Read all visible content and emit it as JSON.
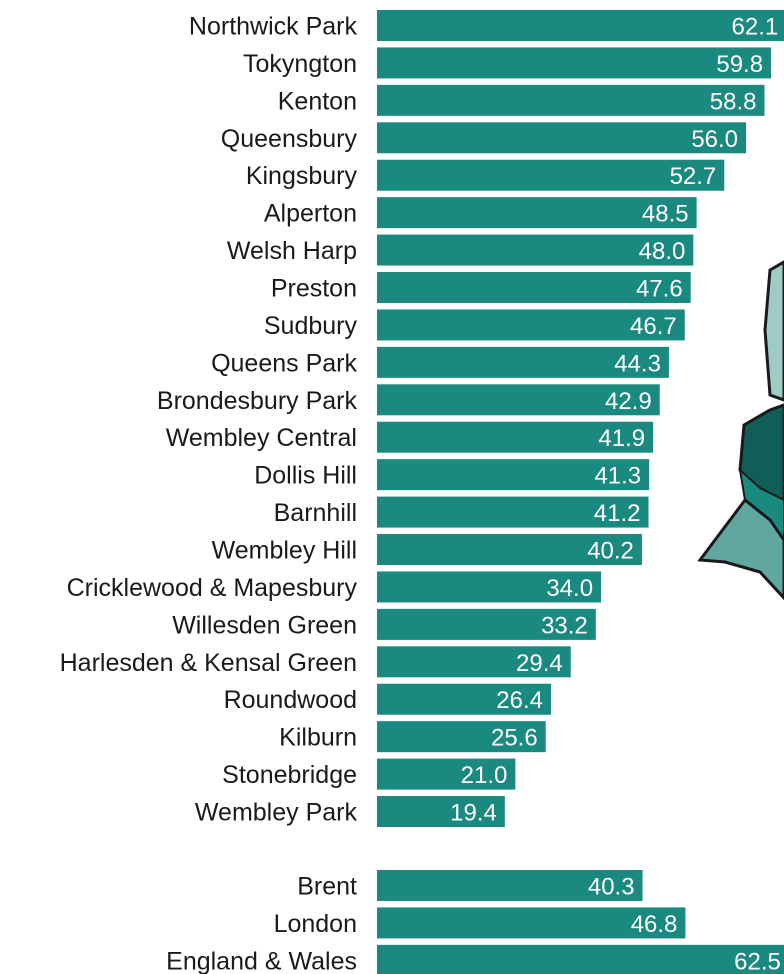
{
  "chart_data": {
    "type": "bar",
    "orientation": "horizontal",
    "bar_color": "#1a8a80",
    "map_colors": [
      "#0f5f58",
      "#1a8a80",
      "#5fa7a0",
      "#9fcbc6"
    ],
    "xlim": [
      0,
      62.5
    ],
    "grid": false,
    "legend": "none",
    "categories": [
      "Northwick Park",
      "Tokyngton",
      "Kenton",
      "Queensbury",
      "Kingsbury",
      "Alperton",
      "Welsh Harp",
      "Preston",
      "Sudbury",
      "Queens Park",
      "Brondesbury Park",
      "Wembley Central",
      "Dollis Hill",
      "Barnhill",
      "Wembley Hill",
      "Cricklewood & Mapesbury",
      "Willesden Green",
      "Harlesden & Kensal Green",
      "Roundwood",
      "Kilburn",
      "Stonebridge",
      "Wembley Park"
    ],
    "values": [
      62.1,
      59.8,
      58.8,
      56.0,
      52.7,
      48.5,
      48.0,
      47.6,
      46.7,
      44.3,
      42.9,
      41.9,
      41.3,
      41.2,
      40.2,
      34.0,
      33.2,
      29.4,
      26.4,
      25.6,
      21.0,
      19.4
    ],
    "value_labels": [
      "62.1",
      "59.8",
      "58.8",
      "56.0",
      "52.7",
      "48.5",
      "48.0",
      "47.6",
      "46.7",
      "44.3",
      "42.9",
      "41.9",
      "41.3",
      "41.2",
      "40.2",
      "34.0",
      "33.2",
      "29.4",
      "26.4",
      "25.6",
      "21.0",
      "19.4"
    ],
    "comparison_categories": [
      "Brent",
      "London",
      "England & Wales"
    ],
    "comparison_values": [
      40.3,
      46.8,
      62.5
    ],
    "comparison_labels": [
      "40.3",
      "46.8",
      "62.5"
    ]
  }
}
